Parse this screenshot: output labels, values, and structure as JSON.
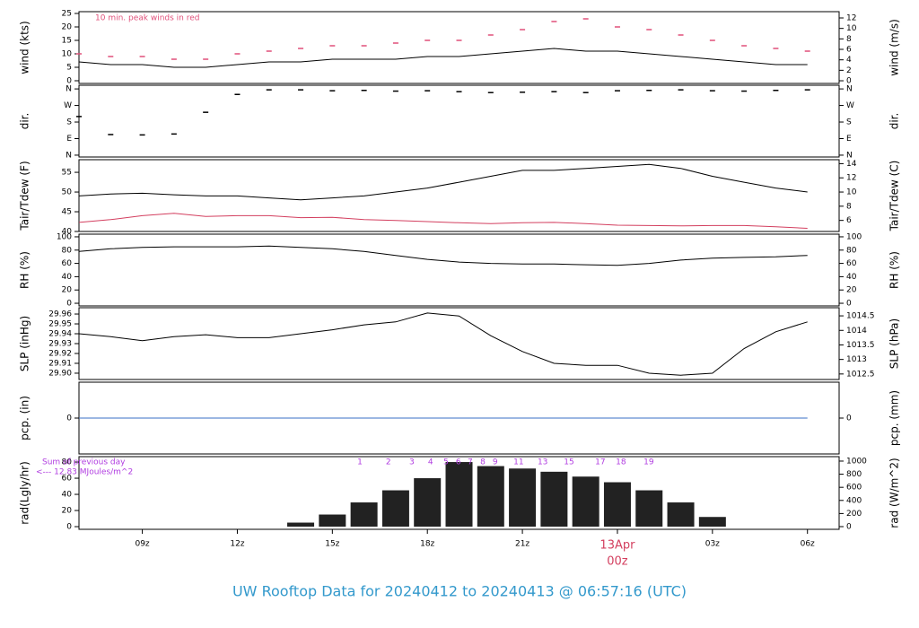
{
  "title": "UW Rooftop Data for 20240412  to  20240413 @ 06:57:16  (UTC)",
  "chart_data": [
    {
      "type": "line",
      "ylabel": "wind (kts)",
      "y2label": "wind (m/s)",
      "note": "10 min. peak winds in red",
      "x": [
        7,
        8,
        9,
        10,
        11,
        12,
        13,
        14,
        15,
        16,
        17,
        18,
        19,
        20,
        21,
        22,
        23,
        24,
        25,
        26,
        27,
        28,
        29,
        30
      ],
      "xlim": [
        7,
        31
      ],
      "ylim": [
        -1,
        25.67
      ],
      "yticks": [
        0,
        5,
        10,
        15,
        20,
        25
      ],
      "y2lim": [
        -0.51,
        13.2
      ],
      "y2ticks": [
        0,
        2,
        4,
        6,
        8,
        10,
        12
      ],
      "series": [
        {
          "color": "#000000",
          "values": [
            7,
            6,
            6,
            5,
            5,
            6,
            7,
            7,
            8,
            8,
            8,
            9,
            9,
            10,
            11,
            12,
            11,
            11,
            10,
            9,
            8,
            7,
            6,
            6
          ]
        },
        {
          "color": "#e0507a",
          "marker": "dash",
          "values": [
            10,
            9,
            9,
            8,
            8,
            10,
            11,
            12,
            13,
            13,
            14,
            15,
            15,
            17,
            19,
            22,
            23,
            20,
            19,
            17,
            15,
            13,
            12,
            11
          ]
        }
      ]
    },
    {
      "type": "scatter",
      "ylabel": "dir.",
      "y2label": "dir.",
      "x": [
        7,
        8,
        9,
        10,
        11,
        12,
        13,
        14,
        15,
        16,
        17,
        18,
        19,
        20,
        21,
        22,
        23,
        24,
        25,
        26,
        27,
        28,
        29,
        30
      ],
      "xlim": [
        7,
        31
      ],
      "ylim": [
        -10,
        380
      ],
      "yticks": [
        {
          "value": 0,
          "label": "N"
        },
        {
          "value": 90,
          "label": "E"
        },
        {
          "value": 180,
          "label": "S"
        },
        {
          "value": 270,
          "label": "W"
        },
        {
          "value": 360,
          "label": "N"
        }
      ],
      "y2lim": [
        -10,
        380
      ],
      "y2ticks": [
        {
          "value": 0,
          "label": "N"
        },
        {
          "value": 90,
          "label": "E"
        },
        {
          "value": 180,
          "label": "S"
        },
        {
          "value": 270,
          "label": "W"
        },
        {
          "value": 360,
          "label": "N"
        }
      ],
      "series": [
        {
          "color": "#000000",
          "values": [
            210,
            112,
            110,
            115,
            233,
            330,
            355,
            355,
            350,
            352,
            348,
            350,
            345,
            340,
            342,
            345,
            340,
            350,
            352,
            355,
            350,
            348,
            352,
            355
          ]
        }
      ]
    },
    {
      "type": "line",
      "ylabel": "Tair/Tdew (F)",
      "y2label": "Tair/Tdew (C)",
      "x": [
        7,
        8,
        9,
        10,
        11,
        12,
        13,
        14,
        15,
        16,
        17,
        18,
        19,
        20,
        21,
        22,
        23,
        24,
        25,
        26,
        27,
        28,
        29,
        30
      ],
      "xlim": [
        7,
        31
      ],
      "ylim": [
        40,
        58.2
      ],
      "yticks": [
        40,
        45,
        50,
        55
      ],
      "y2lim": [
        4.44,
        14.56
      ],
      "y2ticks": [
        6,
        8,
        10,
        12,
        14
      ],
      "series": [
        {
          "color": "#000000",
          "values": [
            49,
            49.5,
            49.7,
            49.3,
            49,
            49,
            48.5,
            48,
            48.5,
            49,
            50,
            51,
            52.5,
            54,
            55.5,
            55.5,
            56,
            56.5,
            57,
            56,
            54,
            52.5,
            51,
            50
          ]
        },
        {
          "color": "#d33f5f",
          "values": [
            42.3,
            43,
            44,
            44.6,
            43.8,
            44,
            44,
            43.5,
            43.6,
            43,
            42.8,
            42.5,
            42.2,
            42,
            42.2,
            42.3,
            42,
            41.6,
            41.5,
            41.4,
            41.5,
            41.5,
            41.2,
            40.8
          ]
        }
      ]
    },
    {
      "type": "line",
      "ylabel": "RH (%)",
      "y2label": "RH (%)",
      "x": [
        7,
        8,
        9,
        10,
        11,
        12,
        13,
        14,
        15,
        16,
        17,
        18,
        19,
        20,
        21,
        22,
        23,
        24,
        25,
        26,
        27,
        28,
        29,
        30
      ],
      "xlim": [
        7,
        31
      ],
      "ylim": [
        -4,
        104
      ],
      "yticks": [
        0,
        20,
        40,
        60,
        80,
        100
      ],
      "y2lim": [
        -4,
        104
      ],
      "y2ticks": [
        0,
        20,
        40,
        60,
        80,
        100
      ],
      "series": [
        {
          "color": "#000000",
          "values": [
            78,
            82,
            84,
            85,
            85,
            85,
            86,
            84,
            82,
            78,
            72,
            66,
            62,
            60,
            59,
            59,
            58,
            57,
            60,
            65,
            68,
            69,
            70,
            72
          ]
        }
      ]
    },
    {
      "type": "line",
      "ylabel": "SLP (inHg)",
      "y2label": "SLP (hPa)",
      "x": [
        7,
        8,
        9,
        10,
        11,
        12,
        13,
        14,
        15,
        16,
        17,
        18,
        19,
        20,
        21,
        22,
        23,
        24,
        25,
        26,
        27,
        28,
        29,
        30
      ],
      "xlim": [
        7,
        31
      ],
      "ylim": [
        29.8936,
        29.9664
      ],
      "yticks": [
        {
          "value": 29.9,
          "label": "29.90"
        },
        29.91,
        29.92,
        29.93,
        29.94,
        29.95,
        29.96
      ],
      "y2lim": [
        1012.31,
        1014.78
      ],
      "y2ticks": [
        1012.5,
        1013,
        1013.5,
        1014,
        1014.5
      ],
      "series": [
        {
          "color": "#000000",
          "values": [
            29.94,
            29.937,
            29.933,
            29.937,
            29.939,
            29.936,
            29.936,
            29.94,
            29.944,
            29.949,
            29.952,
            29.961,
            29.958,
            29.938,
            29.922,
            29.91,
            29.908,
            29.908,
            29.9,
            29.898,
            29.9,
            29.925,
            29.942,
            29.952
          ]
        }
      ]
    },
    {
      "type": "line",
      "ylabel": "pcp. (in)",
      "y2label": "pcp. (mm)",
      "x": [
        7,
        8,
        9,
        10,
        11,
        12,
        13,
        14,
        15,
        16,
        17,
        18,
        19,
        20,
        21,
        22,
        23,
        24,
        25,
        26,
        27,
        28,
        29,
        30
      ],
      "xlim": [
        7,
        31
      ],
      "ylim": [
        -1,
        1
      ],
      "yticks": [
        0
      ],
      "y2lim": [
        -25.4,
        25.4
      ],
      "y2ticks": [
        0
      ],
      "series": [
        {
          "color": "#3a6fc4",
          "values": [
            0,
            0,
            0,
            0,
            0,
            0,
            0,
            0,
            0,
            0,
            0,
            0,
            0,
            0,
            0,
            0,
            0,
            0,
            0,
            0,
            0,
            0,
            0,
            0
          ]
        }
      ]
    },
    {
      "type": "bar",
      "ylabel": "rad(Lgly/hr)",
      "y2label": "rad (W/m^2)",
      "notes": [
        "Sum of previous day",
        "<--- 12.83 MJoules/m^2"
      ],
      "hour_marks": {
        "labels": [
          "1",
          "2",
          "3",
          "4",
          "5",
          "6",
          "7",
          "8",
          "9",
          "11",
          "13",
          "15",
          "17",
          "18",
          "19"
        ],
        "x": [
          15.87,
          16.77,
          17.51,
          18.1,
          18.59,
          18.98,
          19.35,
          19.75,
          20.14,
          20.88,
          21.64,
          22.47,
          23.46,
          24.11,
          24.99
        ]
      },
      "x": [
        7,
        8,
        9,
        10,
        11,
        12,
        13,
        14,
        15,
        16,
        17,
        18,
        19,
        20,
        21,
        22,
        23,
        24,
        25,
        26,
        27,
        28,
        29,
        30
      ],
      "xlim": [
        7,
        31
      ],
      "ylim": [
        -3.3,
        86.7
      ],
      "yticks": [
        0,
        20,
        40,
        60,
        80
      ],
      "y2lim": [
        -41,
        1068
      ],
      "y2ticks": [
        0,
        200,
        400,
        600,
        800,
        1000
      ],
      "xticks": [
        {
          "value": 9,
          "label": "09z"
        },
        {
          "value": 12,
          "label": "12z"
        },
        {
          "value": 15,
          "label": "15z"
        },
        {
          "value": 18,
          "label": "18z"
        },
        {
          "value": 21,
          "label": "21z"
        },
        {
          "value": 24,
          "label": "00z",
          "date": "13Apr"
        },
        {
          "value": 27,
          "label": "03z"
        },
        {
          "value": 30,
          "label": "06z"
        }
      ],
      "series": [
        {
          "color": "#222222",
          "values": [
            0,
            0,
            0,
            0,
            0,
            0,
            0,
            5,
            15,
            30,
            45,
            60,
            80,
            75,
            72,
            68,
            62,
            55,
            45,
            30,
            12,
            0,
            0,
            0
          ]
        }
      ]
    }
  ]
}
